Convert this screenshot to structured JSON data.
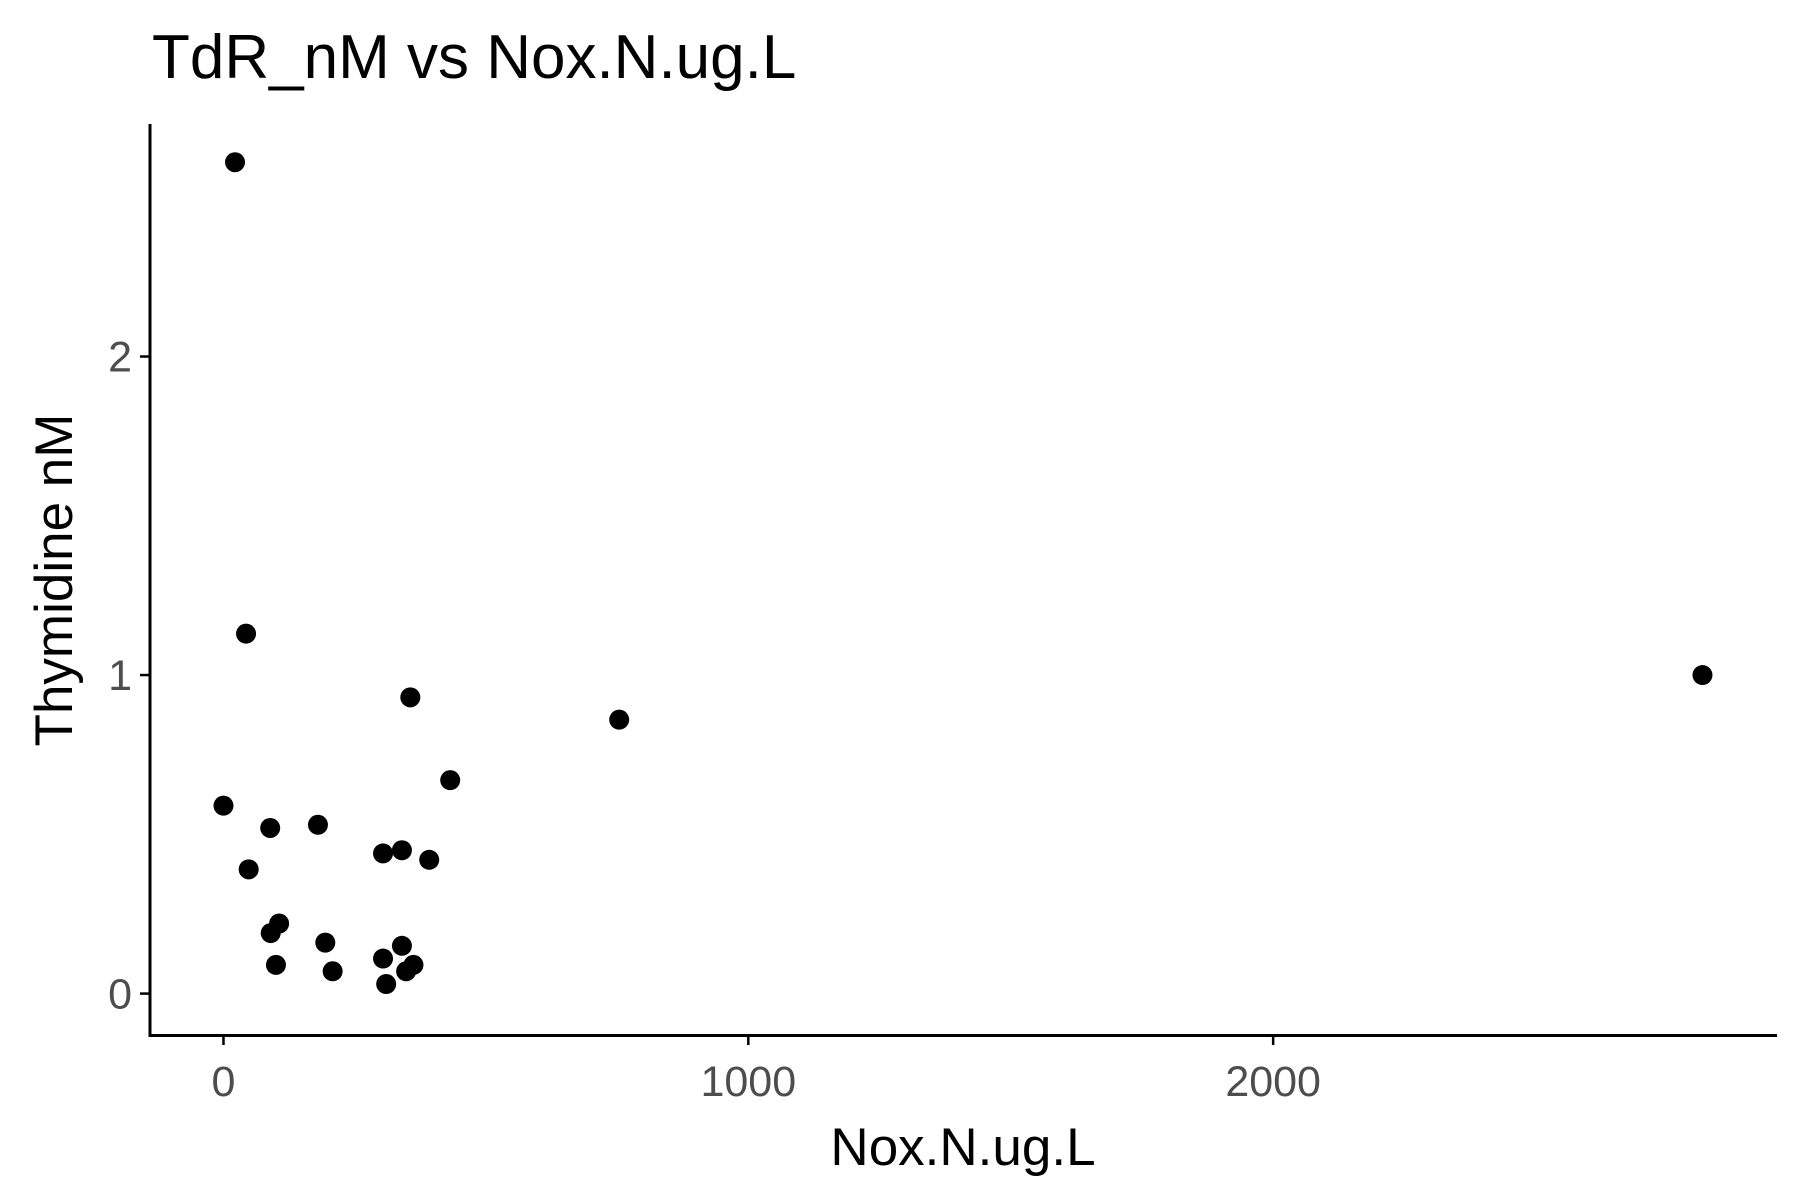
{
  "chart_data": {
    "type": "scatter",
    "title": "TdR_nM vs Nox.N.ug.L",
    "xlabel": "Nox.N.ug.L",
    "ylabel": "Thymidine nM",
    "xlim": [
      -140,
      2960
    ],
    "ylim": [
      -0.13,
      2.73
    ],
    "x_ticks": [
      0,
      1000,
      2000
    ],
    "x_tick_labels": [
      "0",
      "1000",
      "2000"
    ],
    "y_ticks": [
      0,
      1,
      2
    ],
    "y_tick_labels": [
      "0",
      "1",
      "2"
    ],
    "grid": false,
    "legend": "none",
    "point_color": "#000000",
    "points": [
      {
        "x": 22,
        "y": 2.61
      },
      {
        "x": 43,
        "y": 1.13
      },
      {
        "x": 0,
        "y": 0.59
      },
      {
        "x": 48,
        "y": 0.39
      },
      {
        "x": 89,
        "y": 0.52
      },
      {
        "x": 90,
        "y": 0.19
      },
      {
        "x": 106,
        "y": 0.22
      },
      {
        "x": 100,
        "y": 0.09
      },
      {
        "x": 180,
        "y": 0.53
      },
      {
        "x": 194,
        "y": 0.16
      },
      {
        "x": 208,
        "y": 0.07
      },
      {
        "x": 304,
        "y": 0.44
      },
      {
        "x": 304,
        "y": 0.11
      },
      {
        "x": 310,
        "y": 0.03
      },
      {
        "x": 340,
        "y": 0.45
      },
      {
        "x": 340,
        "y": 0.15
      },
      {
        "x": 348,
        "y": 0.07
      },
      {
        "x": 362,
        "y": 0.09
      },
      {
        "x": 356,
        "y": 0.93
      },
      {
        "x": 392,
        "y": 0.42
      },
      {
        "x": 432,
        "y": 0.67
      },
      {
        "x": 754,
        "y": 0.86
      },
      {
        "x": 2818,
        "y": 1.0
      }
    ]
  }
}
